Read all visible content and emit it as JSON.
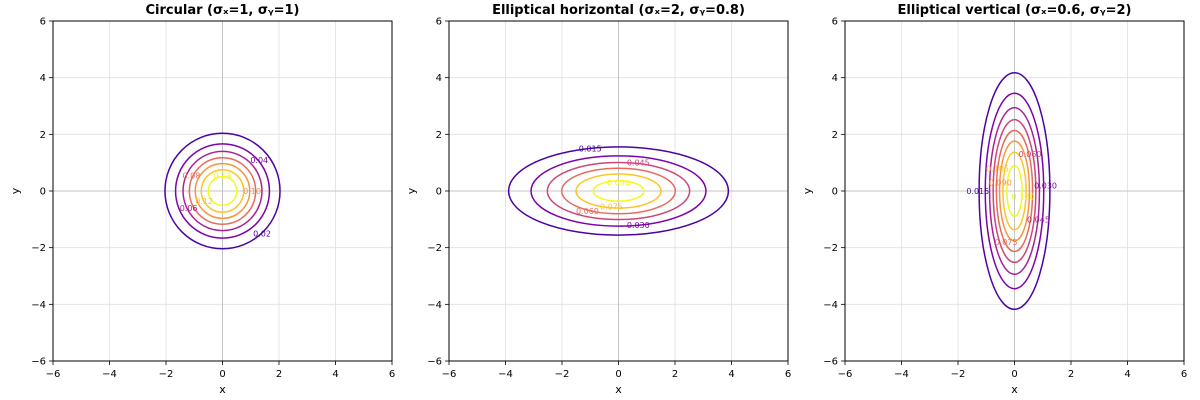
{
  "chart_data": [
    {
      "type": "contour",
      "title": "Circular (σₓ=1, σᵧ=1)",
      "xlabel": "x",
      "ylabel": "y",
      "xlim": [
        -6,
        6
      ],
      "ylim": [
        -6,
        6
      ],
      "xticks": [
        -6,
        -4,
        -2,
        0,
        2,
        4,
        6
      ],
      "yticks": [
        -6,
        -4,
        -2,
        0,
        2,
        4,
        6
      ],
      "tick_labels": [
        "−6",
        "−4",
        "−2",
        "0",
        "2",
        "4",
        "6"
      ],
      "grid": true,
      "sigma_x": 1,
      "sigma_y": 1,
      "levels": [
        0.02,
        0.04,
        0.06,
        0.08,
        0.1,
        0.12,
        0.14
      ],
      "level_labels": [
        "0.02",
        "0.04",
        "0.06",
        "0.08",
        "0.10",
        "0.12",
        "0.14"
      ],
      "contour_labels": [
        {
          "text": "0.02",
          "x": 1.4,
          "y": -1.5
        },
        {
          "text": "0.04",
          "x": 1.3,
          "y": 1.1
        },
        {
          "text": "0.06",
          "x": -1.2,
          "y": -0.6
        },
        {
          "text": "0.08",
          "x": -1.1,
          "y": 0.55
        },
        {
          "text": "0.10",
          "x": 1.05,
          "y": 0.0
        },
        {
          "text": "0.12",
          "x": -0.65,
          "y": -0.35
        },
        {
          "text": "0.14",
          "x": 0.0,
          "y": 0.55
        }
      ]
    },
    {
      "type": "contour",
      "title": "Elliptical horizontal (σₓ=2, σᵧ=0.8)",
      "xlabel": "x",
      "ylabel": "y",
      "xlim": [
        -6,
        6
      ],
      "ylim": [
        -6,
        6
      ],
      "xticks": [
        -6,
        -4,
        -2,
        0,
        2,
        4,
        6
      ],
      "yticks": [
        -6,
        -4,
        -2,
        0,
        2,
        4,
        6
      ],
      "tick_labels": [
        "−6",
        "−4",
        "−2",
        "0",
        "2",
        "4",
        "6"
      ],
      "grid": true,
      "sigma_x": 2,
      "sigma_y": 0.8,
      "levels": [
        0.015,
        0.03,
        0.045,
        0.06,
        0.075,
        0.09
      ],
      "level_labels": [
        "0.015",
        "0.030",
        "0.045",
        "0.060",
        "0.075",
        "0.090"
      ],
      "contour_labels": [
        {
          "text": "0.015",
          "x": -1.0,
          "y": 1.5
        },
        {
          "text": "0.030",
          "x": 0.7,
          "y": -1.2
        },
        {
          "text": "0.045",
          "x": 0.7,
          "y": 1.0
        },
        {
          "text": "0.060",
          "x": -1.1,
          "y": -0.7
        },
        {
          "text": "0.075",
          "x": -0.25,
          "y": -0.55
        },
        {
          "text": "0.090",
          "x": 0.0,
          "y": 0.3
        }
      ]
    },
    {
      "type": "contour",
      "title": "Elliptical vertical (σₓ=0.6, σᵧ=2)",
      "xlabel": "x",
      "ylabel": "y",
      "xlim": [
        -6,
        6
      ],
      "ylim": [
        -6,
        6
      ],
      "xticks": [
        -6,
        -4,
        -2,
        0,
        2,
        4,
        6
      ],
      "yticks": [
        -6,
        -4,
        -2,
        0,
        2,
        4,
        6
      ],
      "tick_labels": [
        "−6",
        "−4",
        "−2",
        "0",
        "2",
        "4",
        "6"
      ],
      "grid": true,
      "sigma_x": 0.6,
      "sigma_y": 2,
      "levels": [
        0.015,
        0.03,
        0.045,
        0.06,
        0.075,
        0.09,
        0.105,
        0.12
      ],
      "level_labels": [
        "0.015",
        "0.030",
        "0.045",
        "0.060",
        "0.075",
        "0.090",
        "0.105",
        "0.120"
      ],
      "contour_labels": [
        {
          "text": "0.015",
          "x": -1.3,
          "y": 0.0
        },
        {
          "text": "0.030",
          "x": 1.1,
          "y": 0.2
        },
        {
          "text": "0.045",
          "x": 0.85,
          "y": -1.0
        },
        {
          "text": "0.060",
          "x": 0.55,
          "y": 1.3
        },
        {
          "text": "0.075",
          "x": -0.3,
          "y": -1.8
        },
        {
          "text": "0.090",
          "x": -0.5,
          "y": 0.3
        },
        {
          "text": "0.105",
          "x": -0.6,
          "y": 0.8
        },
        {
          "text": "0.120",
          "x": 0.3,
          "y": -0.2
        }
      ]
    }
  ],
  "colors": {
    "levels_low_to_high": [
      "#4b03a1",
      "#7d03a8",
      "#a82296",
      "#cb4679",
      "#e56b5d",
      "#f89441",
      "#fdc328",
      "#f0f921"
    ],
    "axes": "#000000",
    "grid": "#e0e0e0",
    "zero_lines": "#bbbbbb"
  }
}
